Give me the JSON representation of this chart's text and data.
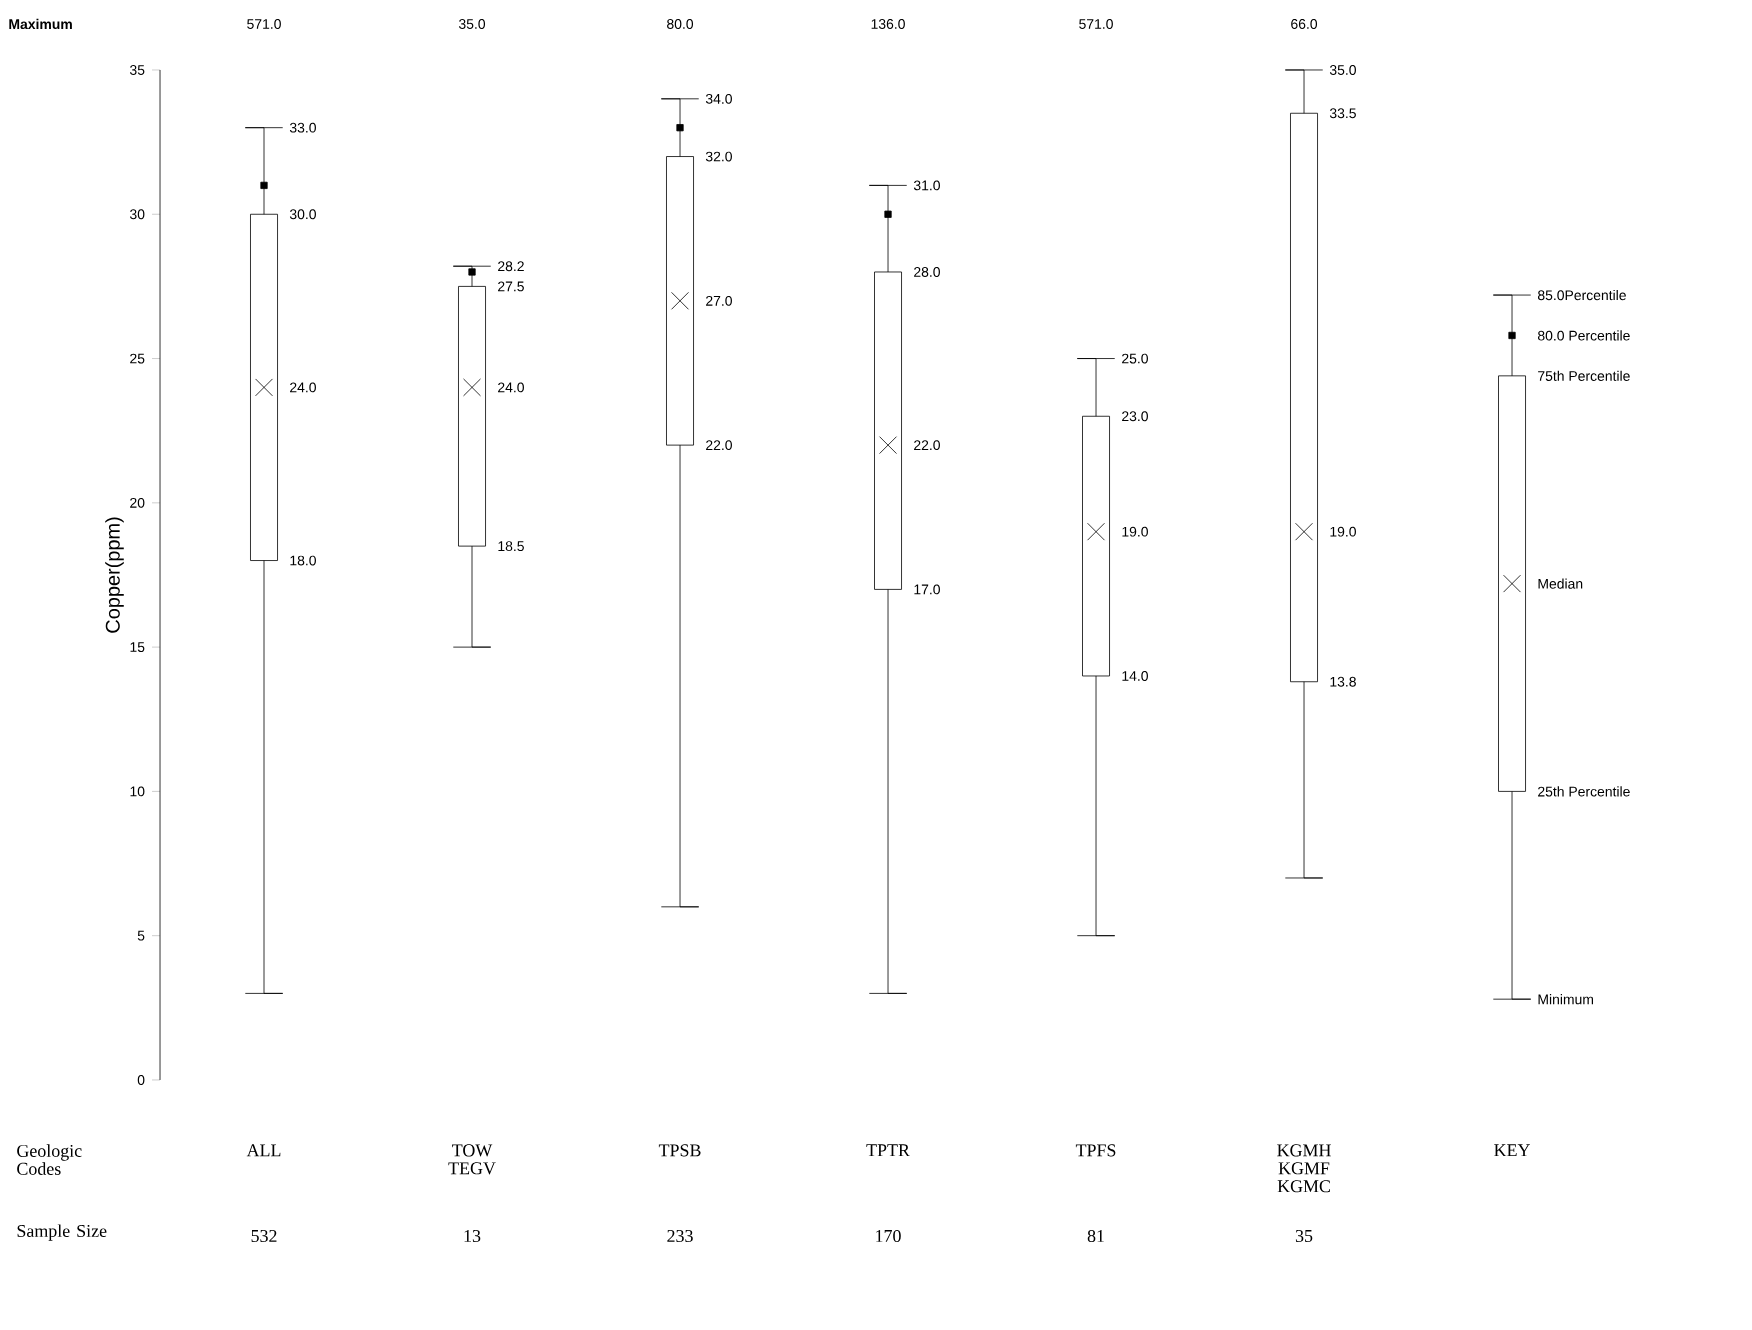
{
  "chart_data": {
    "type": "box",
    "ylabel": "Copper(ppm)",
    "xlabel": "Geologic Codes",
    "categories": [
      "ALL",
      "TOW TEGV",
      "TPSB",
      "TPTR",
      "TPFS",
      "KGMH KGMF KGMC",
      "KEY"
    ],
    "ylim": [
      0,
      35
    ],
    "yticks": [
      0,
      5,
      10,
      15,
      20,
      25,
      30,
      35
    ],
    "boxes": [
      {
        "low": 3,
        "q1": 18,
        "median": 24,
        "q3": 30,
        "high": 33
      },
      {
        "low": 15,
        "q1": 18.5,
        "median": 24,
        "q3": 27.5,
        "high": 28.2
      },
      {
        "low": 6,
        "q1": 22,
        "median": 27,
        "q3": 32,
        "high": 34
      },
      {
        "low": 3,
        "q1": 17,
        "median": 22,
        "q3": 28,
        "high": 31
      },
      {
        "low": 5,
        "q1": 14,
        "median": 19,
        "q3": 23,
        "high": 25
      },
      {
        "low": 7,
        "q1": 13.8,
        "median": 19,
        "q3": 33.5,
        "high": 35
      },
      {
        "low": 2.8,
        "q1": 10,
        "median": 17.2,
        "q3": 24.4,
        "high": 27.2
      }
    ],
    "series": [
      {
        "type": "scatter",
        "marker": "square",
        "x": [
          "ALL",
          "TOW TEGV",
          "TPSB",
          "TPTR",
          "KEY"
        ],
        "values": [
          31,
          28,
          33,
          30,
          25.8
        ]
      }
    ],
    "annotations": [
      "Maximum",
      "571.0",
      "35.0",
      "80.0",
      "136.0",
      "571.0",
      "66.0",
      "Sample Size",
      "532",
      "13",
      "233",
      "170",
      "81",
      "35",
      {
        "text": "33.0",
        "x": "ALL",
        "y": 33
      },
      {
        "text": "30.0",
        "x": "ALL",
        "y": 30
      },
      {
        "text": "24.0",
        "x": "ALL",
        "y": 24
      },
      {
        "text": "18.0",
        "x": "ALL",
        "y": 18
      },
      {
        "text": "28.2",
        "x": "TOW TEGV",
        "y": 28.2
      },
      {
        "text": "27.5",
        "x": "TOW TEGV",
        "y": 27.5
      },
      {
        "text": "24.0",
        "x": "TOW TEGV",
        "y": 24
      },
      {
        "text": "18.5",
        "x": "TOW TEGV",
        "y": 18.5
      },
      {
        "text": "34.0",
        "x": "TPSB",
        "y": 34
      },
      {
        "text": "32.0",
        "x": "TPSB",
        "y": 32
      },
      {
        "text": "27.0",
        "x": "TPSB",
        "y": 27
      },
      {
        "text": "22.0",
        "x": "TPSB",
        "y": 22
      },
      {
        "text": "31.0",
        "x": "TPTR",
        "y": 31
      },
      {
        "text": "28.0",
        "x": "TPTR",
        "y": 28
      },
      {
        "text": "22.0",
        "x": "TPTR",
        "y": 22
      },
      {
        "text": "17.0",
        "x": "TPTR",
        "y": 17
      },
      {
        "text": "25.0",
        "x": "TPFS",
        "y": 25
      },
      {
        "text": "23.0",
        "x": "TPFS",
        "y": 23
      },
      {
        "text": "19.0",
        "x": "TPFS",
        "y": 19
      },
      {
        "text": "14.0",
        "x": "TPFS",
        "y": 14
      },
      {
        "text": "35.0",
        "x": "KGMH KGMF KGMC",
        "y": 35
      },
      {
        "text": "33.5",
        "x": "KGMH KGMF KGMC",
        "y": 33.5
      },
      {
        "text": "19.0",
        "x": "KGMH KGMF KGMC",
        "y": 19
      },
      {
        "text": "13.8",
        "x": "KGMH KGMF KGMC",
        "y": 13.8
      },
      {
        "text": "85.0Percentile",
        "x": "KEY",
        "y": 27.2
      },
      {
        "text": "80.0 Percentile",
        "x": "KEY",
        "y": 25.8
      },
      {
        "text": "75th Percentile",
        "x": "KEY",
        "y": 24.4
      },
      {
        "text": "Median",
        "x": "KEY",
        "y": 17.2
      },
      {
        "text": "25th Percentile",
        "x": "KEY",
        "y": 10
      },
      {
        "text": "Minimum",
        "x": "KEY",
        "y": 2.8
      }
    ]
  }
}
